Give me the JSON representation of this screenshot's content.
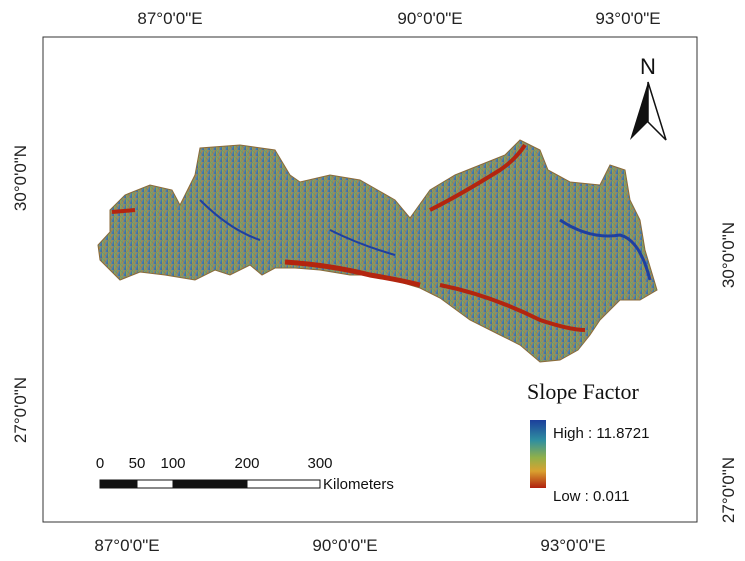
{
  "frame": {
    "top_labels": [
      "87°0'0\"E",
      "90°0'0\"E",
      "93°0'0\"E"
    ],
    "bottom_labels": [
      "87°0'0\"E",
      "90°0'0\"E",
      "93°0'0\"E"
    ],
    "left_labels": [
      "30°0'0\"N",
      "27°0'0\"N"
    ],
    "right_labels": [
      "30°0'0\"N",
      "27°0'0\"N"
    ]
  },
  "north_arrow": {
    "label": "N"
  },
  "legend": {
    "title": "Slope Factor",
    "high": "High : 11.8721",
    "low": "Low : 0.011"
  },
  "scale_bar": {
    "labels": [
      "0",
      "50",
      "100",
      "200",
      "300"
    ],
    "unit": "Kilometers"
  }
}
